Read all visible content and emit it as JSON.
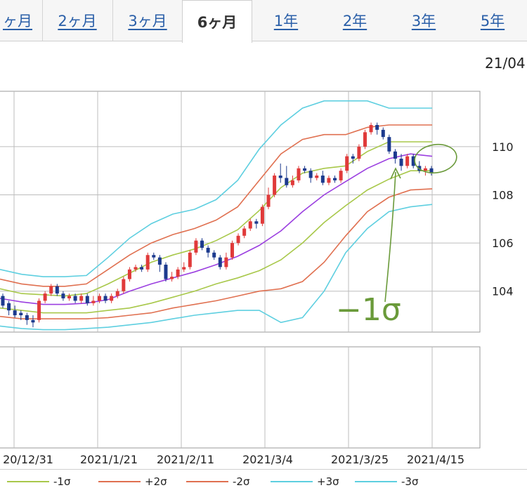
{
  "tabs": [
    {
      "label": "ヶ月",
      "active": false
    },
    {
      "label": "2ヶ月",
      "active": false
    },
    {
      "label": "3ヶ月",
      "active": false
    },
    {
      "label": "6ヶ月",
      "active": true
    },
    {
      "label": "1年",
      "active": false
    },
    {
      "label": "2年",
      "active": false
    },
    {
      "label": "3年",
      "active": false
    },
    {
      "label": "5年",
      "active": false
    }
  ],
  "top_date": "21/04",
  "annotation": "−1σ",
  "legend": [
    {
      "label": "-1σ",
      "color": "#a8c84a"
    },
    {
      "label": "+2σ",
      "color": "#e07050"
    },
    {
      "label": "-2σ",
      "color": "#e07050"
    },
    {
      "label": "+3σ",
      "color": "#5ecfe0"
    },
    {
      "label": "-3σ",
      "color": "#5ecfe0"
    }
  ],
  "colors": {
    "up_candle": "#e03a3a",
    "down_candle": "#1c3a8e",
    "mid": "#9b3fe0",
    "sigma1": "#a8c84a",
    "sigma2": "#e07050",
    "sigma3": "#5ecfe0",
    "annotation": "#6a9a3a"
  },
  "chart_data": {
    "type": "candlestick",
    "x_ticks": [
      "20/12/31",
      "2021/1/21",
      "2021/2/11",
      "2021/3/4",
      "2021/3/25",
      "2021/4/15"
    ],
    "y_ticks": [
      104,
      106,
      108,
      110
    ],
    "ylim": [
      102.3,
      112.3
    ],
    "series": {
      "mid": [
        [
          0,
          103.7
        ],
        [
          5,
          103.55
        ],
        [
          10,
          103.45
        ],
        [
          15,
          103.45
        ],
        [
          20,
          103.5
        ],
        [
          25,
          103.65
        ],
        [
          30,
          104.0
        ],
        [
          35,
          104.3
        ],
        [
          40,
          104.55
        ],
        [
          45,
          104.8
        ],
        [
          50,
          105.1
        ],
        [
          55,
          105.45
        ],
        [
          60,
          105.9
        ],
        [
          65,
          106.5
        ],
        [
          70,
          107.3
        ],
        [
          75,
          108.0
        ],
        [
          80,
          108.55
        ],
        [
          85,
          109.1
        ],
        [
          90,
          109.5
        ],
        [
          95,
          109.7
        ],
        [
          100,
          109.6
        ]
      ],
      "plus1": [
        [
          0,
          104.1
        ],
        [
          5,
          103.9
        ],
        [
          10,
          103.85
        ],
        [
          15,
          103.8
        ],
        [
          20,
          103.9
        ],
        [
          25,
          104.3
        ],
        [
          30,
          104.75
        ],
        [
          35,
          105.2
        ],
        [
          40,
          105.5
        ],
        [
          45,
          105.75
        ],
        [
          50,
          106.1
        ],
        [
          55,
          106.55
        ],
        [
          60,
          107.35
        ],
        [
          65,
          108.3
        ],
        [
          70,
          108.9
        ],
        [
          75,
          109.1
        ],
        [
          80,
          109.2
        ],
        [
          85,
          109.8
        ],
        [
          90,
          110.2
        ],
        [
          95,
          110.2
        ],
        [
          100,
          110.2
        ]
      ],
      "minus1": [
        [
          0,
          103.3
        ],
        [
          5,
          103.2
        ],
        [
          10,
          103.1
        ],
        [
          15,
          103.1
        ],
        [
          20,
          103.1
        ],
        [
          25,
          103.2
        ],
        [
          30,
          103.3
        ],
        [
          35,
          103.5
        ],
        [
          40,
          103.75
        ],
        [
          45,
          104.0
        ],
        [
          50,
          104.3
        ],
        [
          55,
          104.55
        ],
        [
          60,
          104.85
        ],
        [
          65,
          105.3
        ],
        [
          70,
          106.0
        ],
        [
          75,
          106.85
        ],
        [
          80,
          107.55
        ],
        [
          85,
          108.2
        ],
        [
          90,
          108.65
        ],
        [
          95,
          109.0
        ],
        [
          100,
          109.0
        ]
      ],
      "plus2": [
        [
          0,
          104.5
        ],
        [
          5,
          104.3
        ],
        [
          10,
          104.2
        ],
        [
          15,
          104.2
        ],
        [
          20,
          104.3
        ],
        [
          25,
          104.9
        ],
        [
          30,
          105.5
        ],
        [
          35,
          106.0
        ],
        [
          40,
          106.35
        ],
        [
          45,
          106.6
        ],
        [
          50,
          106.95
        ],
        [
          55,
          107.5
        ],
        [
          60,
          108.6
        ],
        [
          65,
          109.7
        ],
        [
          70,
          110.3
        ],
        [
          75,
          110.5
        ],
        [
          80,
          110.5
        ],
        [
          85,
          110.8
        ],
        [
          90,
          110.9
        ],
        [
          95,
          110.9
        ],
        [
          100,
          110.9
        ]
      ],
      "minus2": [
        [
          0,
          102.95
        ],
        [
          5,
          102.85
        ],
        [
          10,
          102.85
        ],
        [
          15,
          102.85
        ],
        [
          20,
          102.85
        ],
        [
          25,
          102.9
        ],
        [
          30,
          103.0
        ],
        [
          35,
          103.1
        ],
        [
          40,
          103.3
        ],
        [
          45,
          103.45
        ],
        [
          50,
          103.6
        ],
        [
          55,
          103.8
        ],
        [
          60,
          104.0
        ],
        [
          65,
          104.1
        ],
        [
          70,
          104.4
        ],
        [
          75,
          105.2
        ],
        [
          80,
          106.3
        ],
        [
          85,
          107.3
        ],
        [
          90,
          107.9
        ],
        [
          95,
          108.2
        ],
        [
          100,
          108.25
        ]
      ],
      "plus3": [
        [
          0,
          104.9
        ],
        [
          5,
          104.7
        ],
        [
          10,
          104.6
        ],
        [
          15,
          104.6
        ],
        [
          20,
          104.65
        ],
        [
          25,
          105.4
        ],
        [
          30,
          106.2
        ],
        [
          35,
          106.8
        ],
        [
          40,
          107.2
        ],
        [
          45,
          107.4
        ],
        [
          50,
          107.8
        ],
        [
          55,
          108.6
        ],
        [
          60,
          109.9
        ],
        [
          65,
          110.9
        ],
        [
          70,
          111.6
        ],
        [
          75,
          111.9
        ],
        [
          80,
          111.9
        ],
        [
          85,
          111.9
        ],
        [
          90,
          111.6
        ],
        [
          95,
          111.6
        ],
        [
          100,
          111.6
        ]
      ],
      "minus3": [
        [
          0,
          102.55
        ],
        [
          5,
          102.45
        ],
        [
          10,
          102.4
        ],
        [
          15,
          102.4
        ],
        [
          20,
          102.45
        ],
        [
          25,
          102.5
        ],
        [
          30,
          102.6
        ],
        [
          35,
          102.7
        ],
        [
          40,
          102.85
        ],
        [
          45,
          103.0
        ],
        [
          50,
          103.1
        ],
        [
          55,
          103.2
        ],
        [
          60,
          103.2
        ],
        [
          65,
          102.7
        ],
        [
          70,
          102.9
        ],
        [
          75,
          104.0
        ],
        [
          80,
          105.6
        ],
        [
          85,
          106.6
        ],
        [
          90,
          107.3
        ],
        [
          95,
          107.5
        ],
        [
          100,
          107.6
        ]
      ]
    },
    "candles": [
      [
        0,
        103.8,
        103.4,
        103.9,
        103.3
      ],
      [
        1,
        103.5,
        103.2,
        103.6,
        103.0
      ],
      [
        2,
        103.2,
        103.0,
        103.4,
        102.9
      ],
      [
        3,
        103.1,
        103.0,
        103.2,
        102.8
      ],
      [
        4,
        103.0,
        102.8,
        103.1,
        102.6
      ],
      [
        5,
        102.8,
        102.7,
        103.0,
        102.5
      ],
      [
        6,
        102.8,
        103.6,
        103.7,
        102.7
      ],
      [
        7,
        103.6,
        103.9,
        104.0,
        103.5
      ],
      [
        8,
        103.9,
        104.2,
        104.3,
        103.8
      ],
      [
        9,
        104.2,
        103.9,
        104.3,
        103.8
      ],
      [
        10,
        103.9,
        103.7,
        104.0,
        103.6
      ],
      [
        11,
        103.7,
        103.8,
        103.9,
        103.6
      ],
      [
        12,
        103.8,
        103.6,
        103.9,
        103.5
      ],
      [
        13,
        103.6,
        103.8,
        103.9,
        103.5
      ],
      [
        14,
        103.8,
        103.5,
        103.9,
        103.4
      ],
      [
        15,
        103.5,
        103.6,
        103.8,
        103.4
      ],
      [
        16,
        103.6,
        103.8,
        103.9,
        103.5
      ],
      [
        17,
        103.8,
        103.6,
        103.9,
        103.5
      ],
      [
        18,
        103.6,
        103.8,
        103.9,
        103.5
      ],
      [
        19,
        103.8,
        104.0,
        104.1,
        103.7
      ],
      [
        20,
        104.0,
        104.5,
        104.6,
        103.9
      ],
      [
        21,
        104.5,
        104.9,
        105.0,
        104.4
      ],
      [
        22,
        104.9,
        105.0,
        105.1,
        104.8
      ],
      [
        23,
        105.0,
        104.9,
        105.1,
        104.8
      ],
      [
        24,
        104.9,
        105.5,
        105.6,
        104.8
      ],
      [
        25,
        105.5,
        105.4,
        105.6,
        105.3
      ],
      [
        26,
        105.4,
        105.1,
        105.5,
        104.8
      ],
      [
        27,
        105.1,
        104.5,
        105.2,
        104.4
      ],
      [
        28,
        104.5,
        104.6,
        104.8,
        104.4
      ],
      [
        29,
        104.6,
        104.9,
        105.0,
        104.5
      ],
      [
        30,
        104.9,
        105.0,
        105.2,
        104.8
      ],
      [
        31,
        105.0,
        105.6,
        105.7,
        104.9
      ],
      [
        32,
        105.6,
        106.1,
        106.2,
        105.5
      ],
      [
        33,
        106.1,
        105.8,
        106.2,
        105.7
      ],
      [
        34,
        105.8,
        105.6,
        105.9,
        105.4
      ],
      [
        35,
        105.6,
        105.4,
        105.7,
        105.3
      ],
      [
        36,
        105.4,
        105.0,
        105.5,
        104.9
      ],
      [
        37,
        105.0,
        105.4,
        105.6,
        104.9
      ],
      [
        38,
        105.4,
        106.0,
        106.1,
        105.3
      ],
      [
        39,
        106.0,
        106.3,
        106.4,
        105.9
      ],
      [
        40,
        106.3,
        106.6,
        106.7,
        106.2
      ],
      [
        41,
        106.6,
        106.9,
        107.0,
        106.5
      ],
      [
        42,
        106.9,
        106.8,
        107.0,
        106.6
      ],
      [
        43,
        106.8,
        107.5,
        107.6,
        106.7
      ],
      [
        44,
        107.5,
        108.0,
        108.3,
        107.4
      ],
      [
        45,
        108.0,
        108.8,
        108.9,
        107.9
      ],
      [
        46,
        108.8,
        108.7,
        109.3,
        108.5
      ],
      [
        47,
        108.7,
        108.4,
        109.2,
        108.3
      ],
      [
        48,
        108.4,
        108.6,
        108.8,
        108.3
      ],
      [
        49,
        108.6,
        109.1,
        109.2,
        108.5
      ],
      [
        50,
        109.1,
        109.0,
        109.2,
        108.9
      ],
      [
        51,
        109.0,
        108.7,
        109.1,
        108.5
      ],
      [
        52,
        108.7,
        108.8,
        108.9,
        108.6
      ],
      [
        53,
        108.8,
        108.5,
        109.0,
        108.4
      ],
      [
        54,
        108.5,
        108.7,
        108.8,
        108.4
      ],
      [
        55,
        108.7,
        108.6,
        108.8,
        108.5
      ],
      [
        56,
        108.6,
        109.0,
        109.1,
        108.5
      ],
      [
        57,
        109.0,
        109.6,
        109.7,
        108.9
      ],
      [
        58,
        109.6,
        109.5,
        109.7,
        109.3
      ],
      [
        59,
        109.5,
        110.0,
        110.1,
        109.4
      ],
      [
        60,
        110.0,
        110.6,
        110.7,
        109.9
      ],
      [
        61,
        110.6,
        110.9,
        111.0,
        110.5
      ],
      [
        62,
        110.9,
        110.7,
        111.0,
        110.5
      ],
      [
        63,
        110.7,
        110.4,
        110.8,
        110.3
      ],
      [
        64,
        110.4,
        109.8,
        110.5,
        109.7
      ],
      [
        65,
        109.8,
        109.5,
        109.9,
        109.3
      ],
      [
        66,
        109.5,
        109.2,
        109.7,
        109.0
      ],
      [
        67,
        109.2,
        109.6,
        109.7,
        109.1
      ],
      [
        68,
        109.6,
        109.2,
        109.7,
        109.1
      ],
      [
        69,
        109.2,
        109.0,
        109.4,
        108.9
      ],
      [
        70,
        109.0,
        109.1,
        109.2,
        108.8
      ],
      [
        71,
        109.1,
        108.9,
        109.2,
        108.8
      ]
    ]
  }
}
